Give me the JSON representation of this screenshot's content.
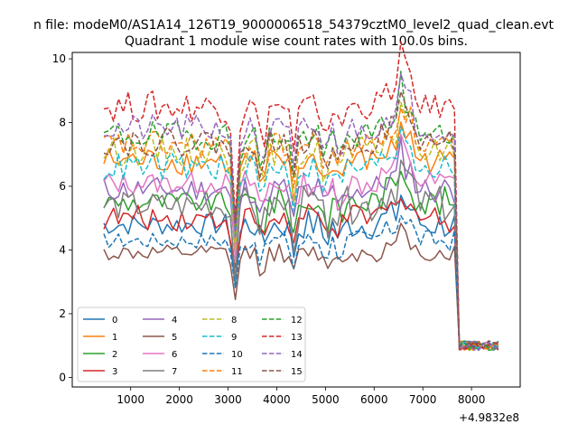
{
  "suptitle": "n file: modeM0/AS1A14_126T19_9000006518_54379cztM0_level2_quad_clean.evt",
  "chart_data": {
    "type": "line",
    "title": "Quadrant 1 module wise count rates with 100.0s bins.",
    "xlabel": "",
    "ylabel": "",
    "x_offset_label": "+4.9832e8",
    "xlim": [
      -200,
      9000
    ],
    "ylim": [
      -0.3,
      10.2
    ],
    "xticks": [
      1000,
      2000,
      3000,
      4000,
      5000,
      6000,
      7000,
      8000
    ],
    "yticks": [
      0,
      2,
      4,
      6,
      8,
      10
    ],
    "x_start": 450,
    "x_step": 100,
    "legend_position": "lower-left",
    "legend_columns": 4,
    "series": [
      {
        "name": "0",
        "color": "#1f77b4",
        "dash": "solid",
        "level": 4.8,
        "w1": 0.7,
        "w2": 1.0,
        "ex": 0.3,
        "end": 3.0
      },
      {
        "name": "1",
        "color": "#ff7f0e",
        "dash": "solid",
        "level": 6.8,
        "w1": 0.9,
        "w2": 0.8,
        "ex": 0.4,
        "end": 3.5
      },
      {
        "name": "2",
        "color": "#2ca02c",
        "dash": "solid",
        "level": 5.5,
        "w1": 0.7,
        "w2": 1.0,
        "ex": 0.5,
        "end": 3.5
      },
      {
        "name": "3",
        "color": "#d62728",
        "dash": "solid",
        "level": 5.0,
        "w1": 0.8,
        "w2": 0.9,
        "ex": 0.3,
        "end": 3.3
      },
      {
        "name": "4",
        "color": "#9467bd",
        "dash": "solid",
        "level": 5.9,
        "w1": 0.8,
        "w2": 0.9,
        "ex": 0.4,
        "end": 3.5
      },
      {
        "name": "5",
        "color": "#8c564b",
        "dash": "solid",
        "level": 3.9,
        "w1": 0.5,
        "w2": 0.6,
        "ex": 0.2,
        "end": 2.5
      },
      {
        "name": "6",
        "color": "#e377c2",
        "dash": "solid",
        "level": 6.1,
        "w1": 0.7,
        "w2": 0.9,
        "ex": 0.5,
        "end": 3.6
      },
      {
        "name": "7",
        "color": "#7f7f7f",
        "dash": "solid",
        "level": 5.4,
        "w1": 0.9,
        "w2": 1.2,
        "ex": 0.6,
        "end": 3.6
      },
      {
        "name": "8",
        "color": "#bcbd22",
        "dash": "dashed",
        "level": 7.1,
        "w1": 0.9,
        "w2": 0.9,
        "ex": 0.6,
        "end": 4.2
      },
      {
        "name": "9",
        "color": "#17becf",
        "dash": "dashed",
        "level": 6.6,
        "w1": 0.9,
        "w2": 0.8,
        "ex": 0.5,
        "end": 4.0
      },
      {
        "name": "10",
        "color": "#1f77b4",
        "dash": "dashed",
        "level": 4.3,
        "w1": 0.5,
        "w2": 0.7,
        "ex": 0.4,
        "end": 3.0
      },
      {
        "name": "11",
        "color": "#ff7f0e",
        "dash": "dashed",
        "level": 7.3,
        "w1": 0.9,
        "w2": 0.8,
        "ex": 0.5,
        "end": 4.2
      },
      {
        "name": "12",
        "color": "#2ca02c",
        "dash": "dashed",
        "level": 7.6,
        "w1": 0.9,
        "w2": 0.8,
        "ex": 0.6,
        "end": 4.3
      },
      {
        "name": "13",
        "color": "#d62728",
        "dash": "dashed",
        "level": 8.5,
        "w1": 1.0,
        "w2": 0.8,
        "ex": 0.6,
        "end": 4.9
      },
      {
        "name": "14",
        "color": "#9467bd",
        "dash": "dashed",
        "level": 7.8,
        "w1": 0.9,
        "w2": 0.8,
        "ex": 0.5,
        "end": 4.4
      },
      {
        "name": "15",
        "color": "#8c564b",
        "dash": "dashed",
        "level": 7.4,
        "w1": 0.9,
        "w2": 0.8,
        "ex": 0.5,
        "end": 4.1
      }
    ]
  }
}
